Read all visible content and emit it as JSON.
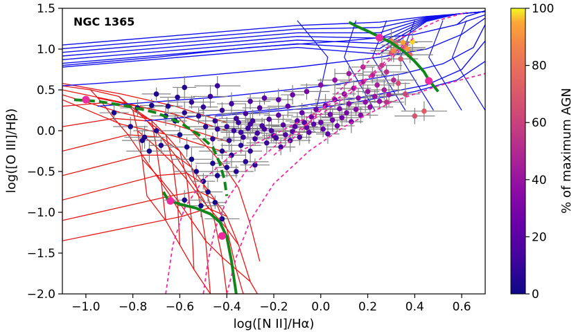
{
  "chart_data": {
    "type": "scatter",
    "title": "NGC 1365",
    "xlabel": "log([N II]/Hα)",
    "ylabel": "log([O III]/Hβ)",
    "xlim": [
      -1.1,
      0.7
    ],
    "ylim": [
      -2.0,
      1.5
    ],
    "xticks": [
      -1.0,
      -0.8,
      -0.6,
      -0.4,
      -0.2,
      0.0,
      0.2,
      0.4,
      0.6
    ],
    "xtick_labels": [
      "−1.0",
      "−0.8",
      "−0.6",
      "−0.4",
      "−0.2",
      "0.0",
      "0.2",
      "0.4",
      "0.6"
    ],
    "yticks": [
      -2.0,
      -1.5,
      -1.0,
      -0.5,
      0.0,
      0.5,
      1.0,
      1.5
    ],
    "ytick_labels": [
      "−2.0",
      "−1.5",
      "−1.0",
      "−0.5",
      "0.0",
      "0.5",
      "1.0",
      "1.5"
    ],
    "colorbar": {
      "label": "% of maximum AGN",
      "range": [
        0,
        100
      ],
      "ticks": [
        0,
        20,
        40,
        60,
        80,
        100
      ],
      "tick_labels": [
        "0",
        "20",
        "40",
        "60",
        "80",
        "100"
      ],
      "colormap": "plasma"
    },
    "colors": {
      "hii_grid": "#e81515",
      "agn_grid": "#1010ee",
      "mixing_curve": "#11861b",
      "mixing_dashed": "#ee2aa0",
      "error_bars": "#808080"
    },
    "series": [
      {
        "name": "spaxels",
        "points": [
          {
            "x": -0.72,
            "y": 0.31,
            "c": 3
          },
          {
            "x": -0.65,
            "y": 0.3,
            "c": 4
          },
          {
            "x": -0.61,
            "y": 0.41,
            "c": 5
          },
          {
            "x": -0.58,
            "y": 0.22,
            "c": 6
          },
          {
            "x": -0.55,
            "y": 0.35,
            "c": 7
          },
          {
            "x": -0.52,
            "y": 0.18,
            "c": 6
          },
          {
            "x": -0.5,
            "y": 0.29,
            "c": 8
          },
          {
            "x": -0.47,
            "y": 0.42,
            "c": 9
          },
          {
            "x": -0.45,
            "y": 0.12,
            "c": 7
          },
          {
            "x": -0.42,
            "y": 0.25,
            "c": 10
          },
          {
            "x": -0.4,
            "y": 0.05,
            "c": 9
          },
          {
            "x": -0.38,
            "y": 0.33,
            "c": 12
          },
          {
            "x": -0.36,
            "y": 0.15,
            "c": 11
          },
          {
            "x": -0.34,
            "y": -0.02,
            "c": 10
          },
          {
            "x": -0.32,
            "y": 0.21,
            "c": 13
          },
          {
            "x": -0.3,
            "y": 0.08,
            "c": 12
          },
          {
            "x": -0.28,
            "y": -0.1,
            "c": 11
          },
          {
            "x": -0.26,
            "y": 0.28,
            "c": 15
          },
          {
            "x": -0.24,
            "y": 0.02,
            "c": 13
          },
          {
            "x": -0.22,
            "y": 0.14,
            "c": 16
          },
          {
            "x": -0.2,
            "y": -0.06,
            "c": 14
          },
          {
            "x": -0.18,
            "y": 0.19,
            "c": 18
          },
          {
            "x": -0.16,
            "y": 0.07,
            "c": 17
          },
          {
            "x": -0.14,
            "y": 0.3,
            "c": 20
          },
          {
            "x": -0.12,
            "y": -0.01,
            "c": 16
          },
          {
            "x": -0.1,
            "y": 0.12,
            "c": 19
          },
          {
            "x": -0.08,
            "y": 0.22,
            "c": 21
          },
          {
            "x": -0.06,
            "y": 0.04,
            "c": 18
          },
          {
            "x": -0.04,
            "y": 0.17,
            "c": 22
          },
          {
            "x": -0.02,
            "y": 0.26,
            "c": 24
          },
          {
            "x": 0.0,
            "y": 0.1,
            "c": 21
          },
          {
            "x": 0.02,
            "y": 0.31,
            "c": 26
          },
          {
            "x": 0.04,
            "y": 0.2,
            "c": 25
          },
          {
            "x": 0.06,
            "y": 0.38,
            "c": 28
          },
          {
            "x": 0.08,
            "y": 0.27,
            "c": 27
          },
          {
            "x": 0.1,
            "y": 0.45,
            "c": 31
          },
          {
            "x": 0.12,
            "y": 0.33,
            "c": 30
          },
          {
            "x": 0.14,
            "y": 0.52,
            "c": 34
          },
          {
            "x": 0.16,
            "y": 0.4,
            "c": 33
          },
          {
            "x": 0.18,
            "y": 0.6,
            "c": 38
          },
          {
            "x": 0.2,
            "y": 0.48,
            "c": 36
          },
          {
            "x": 0.22,
            "y": 0.68,
            "c": 42
          },
          {
            "x": 0.24,
            "y": 0.56,
            "c": 40
          },
          {
            "x": 0.26,
            "y": 0.8,
            "c": 50
          },
          {
            "x": 0.28,
            "y": 0.72,
            "c": 47
          },
          {
            "x": 0.3,
            "y": 0.95,
            "c": 62
          },
          {
            "x": 0.32,
            "y": 1.05,
            "c": 70
          },
          {
            "x": 0.34,
            "y": 0.88,
            "c": 60
          },
          {
            "x": 0.36,
            "y": 1.02,
            "c": 72
          },
          {
            "x": 0.38,
            "y": 0.93,
            "c": 66
          },
          {
            "x": 0.33,
            "y": 0.58,
            "c": 58
          },
          {
            "x": 0.36,
            "y": 0.45,
            "c": 55
          },
          {
            "x": 0.28,
            "y": 0.35,
            "c": 48
          },
          {
            "x": 0.4,
            "y": 0.18,
            "c": 60
          },
          {
            "x": 0.44,
            "y": 0.24,
            "c": 64
          },
          {
            "x": 0.3,
            "y": 1.1,
            "c": 78
          },
          {
            "x": 0.35,
            "y": 1.08,
            "c": 88
          },
          {
            "x": 0.37,
            "y": 1.0,
            "c": 85
          },
          {
            "x": 0.39,
            "y": 1.09,
            "c": 95
          },
          {
            "x": 0.31,
            "y": 0.98,
            "c": 80
          },
          {
            "x": -0.62,
            "y": 0.12,
            "c": 2
          },
          {
            "x": -0.6,
            "y": -0.05,
            "c": 2
          },
          {
            "x": -0.57,
            "y": -0.2,
            "c": 2
          },
          {
            "x": -0.55,
            "y": -0.35,
            "c": 1
          },
          {
            "x": -0.53,
            "y": -0.5,
            "c": 2
          },
          {
            "x": -0.5,
            "y": -0.62,
            "c": 1
          },
          {
            "x": -0.48,
            "y": -0.75,
            "c": 2
          },
          {
            "x": -0.46,
            "y": -0.4,
            "c": 3
          },
          {
            "x": -0.44,
            "y": -0.55,
            "c": 3
          },
          {
            "x": -0.42,
            "y": -0.25,
            "c": 4
          },
          {
            "x": -0.4,
            "y": -0.45,
            "c": 4
          },
          {
            "x": -0.38,
            "y": -0.3,
            "c": 5
          },
          {
            "x": -0.36,
            "y": -0.5,
            "c": 5
          },
          {
            "x": -0.34,
            "y": -0.18,
            "c": 6
          },
          {
            "x": -0.32,
            "y": -0.38,
            "c": 6
          },
          {
            "x": -0.3,
            "y": -0.25,
            "c": 7
          },
          {
            "x": -0.28,
            "y": -0.42,
            "c": 7
          },
          {
            "x": -0.42,
            "y": -1.08,
            "c": 2
          },
          {
            "x": -0.58,
            "y": -0.85,
            "c": 1
          },
          {
            "x": -0.51,
            "y": -0.92,
            "c": 2
          },
          {
            "x": -0.45,
            "y": -0.88,
            "c": 3
          },
          {
            "x": -0.88,
            "y": 0.22,
            "c": 3
          },
          {
            "x": -0.81,
            "y": 0.05,
            "c": 3
          },
          {
            "x": -0.75,
            "y": -0.08,
            "c": 4
          },
          {
            "x": -0.7,
            "y": 0.0,
            "c": 3
          },
          {
            "x": -0.68,
            "y": -0.18,
            "c": 4
          },
          {
            "x": -0.66,
            "y": 0.18,
            "c": 5
          },
          {
            "x": -0.49,
            "y": 0.05,
            "c": 6
          },
          {
            "x": -0.46,
            "y": -0.1,
            "c": 7
          },
          {
            "x": -0.44,
            "y": 0.02,
            "c": 8
          },
          {
            "x": -0.39,
            "y": -0.12,
            "c": 8
          },
          {
            "x": -0.37,
            "y": 0.0,
            "c": 9
          },
          {
            "x": -0.35,
            "y": 0.1,
            "c": 10
          },
          {
            "x": -0.33,
            "y": -0.08,
            "c": 9
          },
          {
            "x": -0.31,
            "y": 0.03,
            "c": 10
          },
          {
            "x": -0.29,
            "y": 0.12,
            "c": 12
          },
          {
            "x": -0.27,
            "y": -0.03,
            "c": 11
          },
          {
            "x": -0.25,
            "y": 0.06,
            "c": 12
          },
          {
            "x": -0.23,
            "y": -0.15,
            "c": 10
          },
          {
            "x": -0.21,
            "y": 0.0,
            "c": 13
          },
          {
            "x": -0.19,
            "y": -0.09,
            "c": 12
          },
          {
            "x": -0.17,
            "y": -0.2,
            "c": 11
          },
          {
            "x": -0.15,
            "y": -0.05,
            "c": 14
          },
          {
            "x": -0.13,
            "y": -0.12,
            "c": 13
          },
          {
            "x": -0.11,
            "y": 0.05,
            "c": 16
          },
          {
            "x": -0.09,
            "y": -0.08,
            "c": 15
          },
          {
            "x": -0.07,
            "y": 0.1,
            "c": 18
          },
          {
            "x": -0.05,
            "y": -0.02,
            "c": 17
          },
          {
            "x": -0.03,
            "y": 0.08,
            "c": 19
          },
          {
            "x": 0.01,
            "y": 0.02,
            "c": 20
          },
          {
            "x": 0.03,
            "y": -0.04,
            "c": 19
          },
          {
            "x": 0.05,
            "y": 0.13,
            "c": 23
          },
          {
            "x": 0.07,
            "y": 0.06,
            "c": 22
          },
          {
            "x": 0.09,
            "y": 0.16,
            "c": 25
          },
          {
            "x": 0.11,
            "y": 0.22,
            "c": 27
          },
          {
            "x": 0.13,
            "y": 0.11,
            "c": 26
          },
          {
            "x": 0.15,
            "y": 0.26,
            "c": 30
          },
          {
            "x": 0.17,
            "y": 0.19,
            "c": 29
          },
          {
            "x": 0.19,
            "y": 0.35,
            "c": 33
          },
          {
            "x": 0.21,
            "y": 0.29,
            "c": 32
          },
          {
            "x": 0.23,
            "y": 0.42,
            "c": 36
          },
          {
            "x": 0.25,
            "y": 0.36,
            "c": 35
          },
          {
            "x": 0.27,
            "y": 0.5,
            "c": 40
          },
          {
            "x": 0.29,
            "y": 0.44,
            "c": 39
          },
          {
            "x": 0.31,
            "y": 0.62,
            "c": 45
          },
          {
            "x": 0.18,
            "y": 0.78,
            "c": 42
          },
          {
            "x": 0.12,
            "y": 0.7,
            "c": 38
          },
          {
            "x": 0.06,
            "y": 0.62,
            "c": 34
          },
          {
            "x": 0.0,
            "y": 0.56,
            "c": 30
          },
          {
            "x": -0.06,
            "y": 0.48,
            "c": 26
          },
          {
            "x": -0.12,
            "y": 0.44,
            "c": 22
          },
          {
            "x": -0.18,
            "y": 0.38,
            "c": 19
          },
          {
            "x": -0.24,
            "y": 0.4,
            "c": 17
          },
          {
            "x": -0.3,
            "y": 0.36,
            "c": 14
          },
          {
            "x": -0.44,
            "y": 0.55,
            "c": 9
          },
          {
            "x": -0.58,
            "y": 0.53,
            "c": 5
          },
          {
            "x": -0.7,
            "y": 0.45,
            "c": 3
          },
          {
            "x": -0.78,
            "y": 0.28,
            "c": 2
          },
          {
            "x": -0.76,
            "y": -0.12,
            "c": 2
          },
          {
            "x": -0.73,
            "y": -0.25,
            "c": 2
          }
        ]
      }
    ],
    "mixing_sequences": [
      {
        "name": "left-curve",
        "style": "dashed",
        "x": [
          -1.05,
          -0.95,
          -0.82,
          -0.7,
          -0.6,
          -0.52,
          -0.46,
          -0.43,
          -0.41,
          -0.4
        ],
        "y": [
          0.38,
          0.36,
          0.3,
          0.22,
          0.1,
          -0.05,
          -0.2,
          -0.4,
          -0.6,
          -0.8
        ]
      },
      {
        "name": "middle-curve",
        "style": "solid",
        "x": [
          -0.67,
          -0.65,
          -0.6,
          -0.53,
          -0.47,
          -0.43,
          -0.4,
          -0.38,
          -0.36
        ],
        "y": [
          -0.75,
          -0.85,
          -0.9,
          -0.95,
          -1.02,
          -1.12,
          -1.3,
          -1.6,
          -2.0
        ]
      },
      {
        "name": "right-curve",
        "style": "solid",
        "x": [
          0.12,
          0.16,
          0.2,
          0.25,
          0.3,
          0.35,
          0.4,
          0.44,
          0.46,
          0.5
        ],
        "y": [
          1.33,
          1.27,
          1.22,
          1.15,
          1.08,
          0.98,
          0.85,
          0.72,
          0.62,
          0.48
        ]
      }
    ],
    "pink_curves": [
      {
        "name": "inner-left",
        "x": [
          -0.66,
          -0.63,
          -0.58,
          -0.5,
          -0.38,
          -0.2,
          0.0,
          0.2,
          0.35
        ],
        "y": [
          -2.0,
          -1.4,
          -0.95,
          -0.6,
          -0.3,
          -0.05,
          0.25,
          0.65,
          1.05
        ]
      },
      {
        "name": "inner-mid",
        "x": [
          -0.5,
          -0.48,
          -0.45,
          -0.4,
          -0.32,
          -0.2,
          -0.05,
          0.1,
          0.25,
          0.4
        ],
        "y": [
          -2.0,
          -1.6,
          -1.2,
          -0.85,
          -0.5,
          -0.2,
          0.1,
          0.4,
          0.75,
          1.15
        ]
      },
      {
        "name": "outer",
        "x": [
          -0.4,
          -0.36,
          -0.3,
          -0.2,
          -0.05,
          0.1,
          0.3,
          0.5,
          0.7
        ],
        "y": [
          -2.0,
          -1.55,
          -1.1,
          -0.65,
          -0.25,
          0.05,
          0.35,
          0.55,
          0.7
        ]
      },
      {
        "name": "upper-outer",
        "x": [
          -0.2,
          -0.1,
          0.0,
          0.1,
          0.22,
          0.35,
          0.5,
          0.62
        ],
        "y": [
          -0.3,
          -0.05,
          0.25,
          0.55,
          0.9,
          1.15,
          1.35,
          1.45
        ]
      }
    ],
    "pink_markers": [
      {
        "x": -1.0,
        "y": 0.38
      },
      {
        "x": -0.64,
        "y": -0.86
      },
      {
        "x": -0.42,
        "y": -1.29
      },
      {
        "x": 0.25,
        "y": 1.14
      },
      {
        "x": 0.46,
        "y": 0.61
      }
    ]
  }
}
